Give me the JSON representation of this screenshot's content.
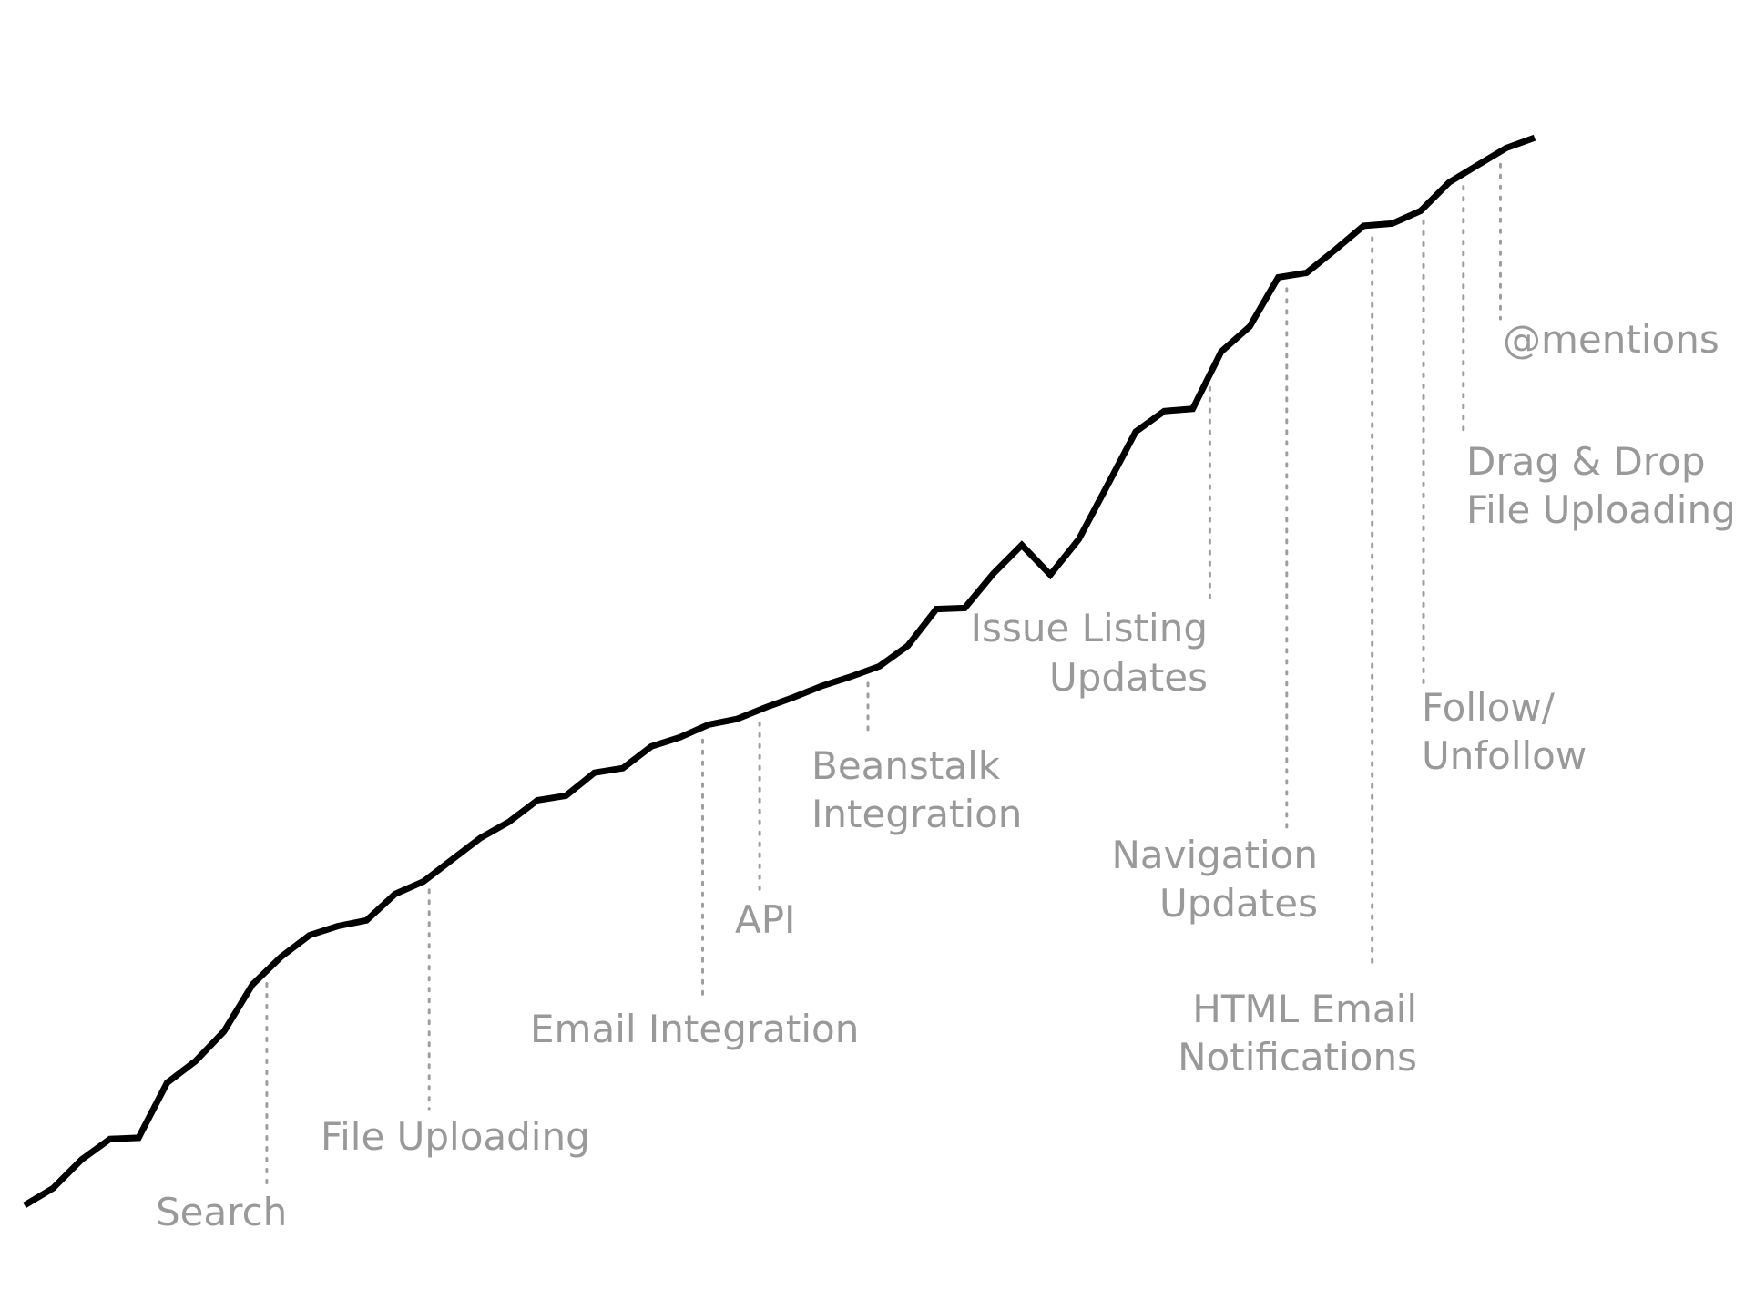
{
  "chart_data": {
    "type": "line",
    "title": "",
    "xlabel": "",
    "ylabel": "",
    "axes_visible": false,
    "grid": false,
    "legend": "none",
    "xlim": [
      0,
      53
    ],
    "ylim": [
      0,
      100
    ],
    "colors": {
      "line": "#000000",
      "annotation_text": "#999999",
      "marker_line": "#9e9e9e",
      "background": "#ffffff"
    },
    "series": [
      {
        "x": [
          0,
          1,
          2,
          3,
          4,
          5,
          6,
          7,
          8,
          9,
          10,
          11,
          12,
          13,
          14,
          15,
          16,
          17,
          18,
          19,
          20,
          21,
          22,
          23,
          24,
          25,
          26,
          27,
          28,
          29,
          30,
          31,
          32,
          33,
          34,
          35,
          36,
          37,
          38,
          39,
          40,
          41,
          42,
          43,
          44,
          45,
          46,
          47,
          48,
          49,
          50,
          51,
          52,
          53
        ],
        "values": [
          0,
          1.5,
          4,
          5.8,
          5.9,
          10.7,
          12.6,
          15.2,
          19.3,
          21.7,
          23.6,
          24.4,
          24.9,
          27.2,
          28.3,
          30.2,
          32.1,
          33.5,
          35.4,
          35.8,
          37.8,
          38.2,
          40.1,
          40.9,
          42,
          42.5,
          43.5,
          44.4,
          45.4,
          46.2,
          47.1,
          48.9,
          52.1,
          52.2,
          55.2,
          57.7,
          55.1,
          58.2,
          62.9,
          67.6,
          69.4,
          69.6,
          74.6,
          76.8,
          81.1,
          81.5,
          83.5,
          85.6,
          85.8,
          86.9,
          89.4,
          90.9,
          92.4,
          93.3
        ]
      }
    ],
    "annotations": [
      {
        "label": [
          "Search"
        ],
        "x": 8.5
      },
      {
        "label": [
          "File Uploading"
        ],
        "x": 14.2
      },
      {
        "label": [
          "Email Integration"
        ],
        "x": 23.8
      },
      {
        "label": [
          "API"
        ],
        "x": 25.8
      },
      {
        "label": [
          "Beanstalk",
          "Integration"
        ],
        "x": 29.6
      },
      {
        "label": [
          "Issue Listing",
          "Updates"
        ],
        "x": 41.6
      },
      {
        "label": [
          "Navigation",
          "Updates"
        ],
        "x": 44.3
      },
      {
        "label": [
          "HTML Email",
          "Notifications"
        ],
        "x": 47.3
      },
      {
        "label": [
          "Follow/",
          "Unfollow"
        ],
        "x": 49.1
      },
      {
        "label": [
          "Drag & Drop",
          "File Uploading"
        ],
        "x": 50.5
      },
      {
        "label": [
          "@mentions"
        ],
        "x": 51.8
      }
    ]
  }
}
